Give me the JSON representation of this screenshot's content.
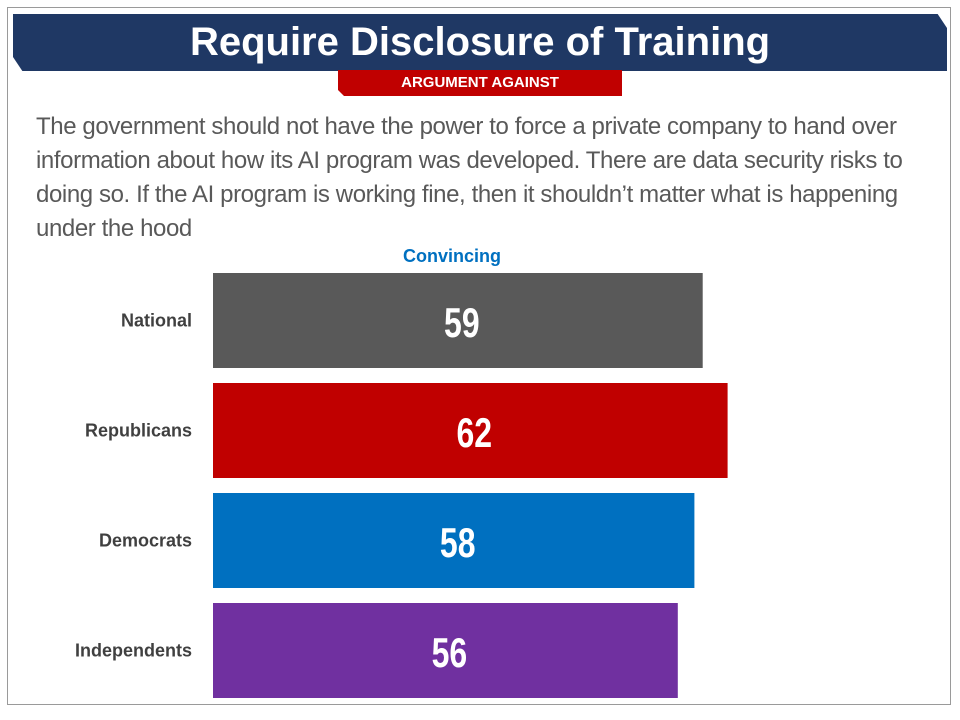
{
  "header": {
    "title": "Require Disclosure of Training",
    "subtitle": "ARGUMENT AGAINST"
  },
  "argument_text": "The government should not have the power to force a private company to hand over information about how its AI program was developed. There are data security risks to doing so. If the AI program is working fine, then it shouldn’t matter what is happening under the hood",
  "colors": {
    "title_bg": "#1f3864",
    "subtitle_bg": "#c00000",
    "header_text": "#0070c0",
    "body_text": "#595959",
    "label_text": "#404040"
  },
  "chart_data": {
    "type": "bar",
    "orientation": "horizontal",
    "column_header": "Convincing",
    "categories": [
      "National",
      "Republicans",
      "Democrats",
      "Independents"
    ],
    "values": [
      59,
      62,
      58,
      56
    ],
    "bar_colors": [
      "#595959",
      "#c00000",
      "#0070c0",
      "#7030a0"
    ],
    "xlim": [
      0,
      100
    ],
    "grid": false,
    "legend": "none",
    "title": "",
    "xlabel": "",
    "ylabel": ""
  }
}
